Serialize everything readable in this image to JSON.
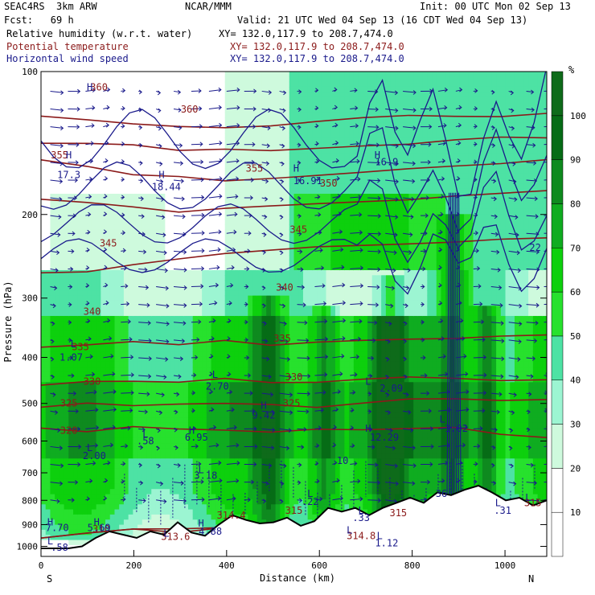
{
  "header": {
    "model": "SEAC4RS  3km ARW",
    "org": "NCAR/MMM",
    "init": "Init: 00 UTC Mon 02 Sep 13",
    "fcst": "Fcst:   69 h",
    "valid": "Valid: 21 UTC Wed 04 Sep 13 (16 CDT Wed 04 Sep 13)",
    "fields": [
      {
        "name": "Relative humidity (w.r.t. water)",
        "xy": "XY= 132.0,117.9 to 208.7,474.0",
        "color": "#000000"
      },
      {
        "name": "Potential temperature",
        "xy": "XY= 132.0,117.9 to 208.7,474.0",
        "color": "#8b1a1a"
      },
      {
        "name": "Horizontal wind speed",
        "xy": "XY= 132.0,117.9 to 208.7,474.0",
        "color": "#1a1a8b"
      }
    ]
  },
  "chart_data": {
    "type": "heatmap",
    "xlabel": "Distance (km)",
    "ylabel": "Pressure (hPa)",
    "x_ticks": [
      0,
      200,
      400,
      600,
      800,
      1000
    ],
    "y_ticks": [
      100,
      200,
      300,
      400,
      500,
      600,
      700,
      800,
      900,
      1000
    ],
    "xlim": [
      0,
      1090
    ],
    "ylim": [
      1050,
      100
    ],
    "y_scale": "log",
    "orientation_labels": {
      "left": "S",
      "right": "N"
    },
    "colorbar": {
      "unit": "%",
      "ticks": [
        10,
        20,
        30,
        40,
        50,
        60,
        70,
        80,
        90,
        100
      ],
      "colors": [
        "#ffffff",
        "#ffffff",
        "#cefadd",
        "#9cf5d2",
        "#4de2a4",
        "#27e12d",
        "#0dd00d",
        "#0fac20",
        "#0e8a1f",
        "#066c16",
        "#0e6b1a"
      ]
    },
    "theta_contours": [
      {
        "label": "360",
        "p": [
          125,
          127,
          128,
          131,
          130,
          129,
          128,
          126,
          125,
          124,
          123,
          122
        ]
      },
      {
        "label": "355",
        "p": [
          140,
          142,
          144,
          148,
          147,
          146,
          144,
          142,
          141,
          140,
          139,
          138
        ]
      },
      {
        "label": "350",
        "p": [
          155,
          160,
          165,
          168,
          168,
          166,
          165,
          163,
          162,
          160,
          158,
          155
        ]
      },
      {
        "label": "345",
        "p": [
          185,
          190,
          195,
          197,
          196,
          194,
          192,
          190,
          188,
          185,
          182,
          180
        ]
      },
      {
        "label": "340",
        "p": [
          268,
          265,
          258,
          250,
          242,
          236,
          232,
          230,
          228,
          226,
          225,
          222
        ]
      },
      {
        "label": "335",
        "p": [
          380,
          375,
          372,
          372,
          372,
          373,
          373,
          371,
          370,
          368,
          365,
          362
        ]
      },
      {
        "label": "330",
        "p": [
          455,
          450,
          448,
          448,
          448,
          448,
          447,
          446,
          445,
          444,
          443,
          442
        ]
      },
      {
        "label": "325",
        "p": [
          505,
          505,
          500,
          502,
          505,
          508,
          508,
          503,
          495,
          492,
          488,
          485
        ]
      },
      {
        "label": "320",
        "p": [
          570,
          570,
          565,
          565,
          565,
          568,
          570,
          572,
          570,
          568,
          575,
          585
        ]
      },
      {
        "label": "315",
        "p": [
          950,
          930,
          930,
          925,
          920,
          915,
          910,
          900,
          880,
          860,
          840,
          830
        ]
      },
      {
        "label": "310",
        "p": [
          950,
          940,
          930,
          920,
          920,
          920,
          910,
          905,
          900,
          890,
          880,
          870
        ]
      }
    ],
    "contour_labels": [
      {
        "text": "360",
        "x": 125,
        "p": 108,
        "color": "#8b1a1a"
      },
      {
        "text": "360",
        "x": 320,
        "p": 120,
        "color": "#8b1a1a"
      },
      {
        "text": "355",
        "x": 40,
        "p": 150,
        "color": "#8b1a1a"
      },
      {
        "text": "355",
        "x": 460,
        "p": 160,
        "color": "#8b1a1a"
      },
      {
        "text": "350",
        "x": 620,
        "p": 172,
        "color": "#8b1a1a"
      },
      {
        "text": "345",
        "x": 145,
        "p": 230,
        "color": "#8b1a1a"
      },
      {
        "text": "345",
        "x": 555,
        "p": 215,
        "color": "#8b1a1a"
      },
      {
        "text": "340",
        "x": 110,
        "p": 320,
        "color": "#8b1a1a"
      },
      {
        "text": "340",
        "x": 525,
        "p": 285,
        "color": "#8b1a1a"
      },
      {
        "text": "335",
        "x": 85,
        "p": 380,
        "color": "#8b1a1a"
      },
      {
        "text": "335",
        "x": 520,
        "p": 365,
        "color": "#8b1a1a"
      },
      {
        "text": "330",
        "x": 110,
        "p": 450,
        "color": "#8b1a1a"
      },
      {
        "text": "330",
        "x": 545,
        "p": 440,
        "color": "#8b1a1a"
      },
      {
        "text": "325",
        "x": 60,
        "p": 500,
        "color": "#8b1a1a"
      },
      {
        "text": "325",
        "x": 540,
        "p": 500,
        "color": "#8b1a1a"
      },
      {
        "text": "320",
        "x": 60,
        "p": 570,
        "color": "#8b1a1a"
      },
      {
        "text": "310",
        "x": 130,
        "p": 920,
        "color": "#8b1a1a"
      },
      {
        "text": "314.4",
        "x": 410,
        "p": 860,
        "color": "#8b1a1a"
      },
      {
        "text": "313.6",
        "x": 290,
        "p": 955,
        "color": "#8b1a1a"
      },
      {
        "text": "314.8",
        "x": 690,
        "p": 950,
        "color": "#8b1a1a"
      },
      {
        "text": "315",
        "x": 545,
        "p": 840,
        "color": "#8b1a1a"
      },
      {
        "text": "315",
        "x": 770,
        "p": 850,
        "color": "#8b1a1a"
      },
      {
        "text": "315",
        "x": 1060,
        "p": 810,
        "color": "#8b1a1a"
      },
      {
        "text": "16.91",
        "x": 575,
        "p": 170,
        "color": "#1a1a8b"
      },
      {
        "text": "16.9",
        "x": 745,
        "p": 155,
        "color": "#1a1a8b"
      },
      {
        "text": "17.3",
        "x": 60,
        "p": 165,
        "color": "#1a1a8b"
      },
      {
        "text": "18.44",
        "x": 270,
        "p": 175,
        "color": "#1a1a8b"
      },
      {
        "text": "1.07",
        "x": 65,
        "p": 400,
        "color": "#1a1a8b"
      },
      {
        "text": "2.70",
        "x": 380,
        "p": 460,
        "color": "#1a1a8b"
      },
      {
        "text": "2.09",
        "x": 755,
        "p": 465,
        "color": "#1a1a8b"
      },
      {
        "text": "9.42",
        "x": 480,
        "p": 530,
        "color": "#1a1a8b"
      },
      {
        "text": "1.02",
        "x": 895,
        "p": 565,
        "color": "#1a1a8b"
      },
      {
        "text": "12.29",
        "x": 740,
        "p": 590,
        "color": "#1a1a8b"
      },
      {
        "text": "6.95",
        "x": 335,
        "p": 590,
        "color": "#1a1a8b"
      },
      {
        "text": ".58",
        "x": 225,
        "p": 600,
        "color": "#1a1a8b"
      },
      {
        "text": "2.00",
        "x": 115,
        "p": 645,
        "color": "#1a1a8b"
      },
      {
        "text": "3.18",
        "x": 355,
        "p": 710,
        "color": "#1a1a8b"
      },
      {
        "text": ".22",
        "x": 580,
        "p": 805,
        "color": "#1a1a8b"
      },
      {
        "text": ".33",
        "x": 690,
        "p": 870,
        "color": "#1a1a8b"
      },
      {
        "text": "7.70",
        "x": 35,
        "p": 915,
        "color": "#1a1a8b"
      },
      {
        "text": "5.69",
        "x": 125,
        "p": 915,
        "color": "#1a1a8b"
      },
      {
        "text": "4.88",
        "x": 365,
        "p": 930,
        "color": "#1a1a8b"
      },
      {
        "text": "1.12",
        "x": 745,
        "p": 985,
        "color": "#1a1a8b"
      },
      {
        "text": ".58",
        "x": 40,
        "p": 1005,
        "color": "#1a1a8b"
      },
      {
        "text": ".31",
        "x": 995,
        "p": 840,
        "color": "#1a1a8b"
      },
      {
        "text": "36",
        "x": 863,
        "p": 775,
        "color": "#1a1a8b"
      },
      {
        "text": "22",
        "x": 1065,
        "p": 235,
        "color": "#1a1a8b"
      },
      {
        "text": "10",
        "x": 650,
        "p": 660,
        "color": "#1a1a8b"
      }
    ],
    "extrema_markers": [
      {
        "text": "H",
        "x": 105,
        "p": 108
      },
      {
        "text": "H",
        "x": 550,
        "p": 160
      },
      {
        "text": "H",
        "x": 725,
        "p": 150
      },
      {
        "text": "H",
        "x": 260,
        "p": 165
      },
      {
        "text": "H",
        "x": 60,
        "p": 150
      },
      {
        "text": "L",
        "x": 70,
        "p": 375
      },
      {
        "text": "L",
        "x": 375,
        "p": 435
      },
      {
        "text": "L",
        "x": 705,
        "p": 450
      },
      {
        "text": "H",
        "x": 480,
        "p": 505
      },
      {
        "text": "L",
        "x": 865,
        "p": 540
      },
      {
        "text": "H",
        "x": 705,
        "p": 565
      },
      {
        "text": "H",
        "x": 325,
        "p": 570
      },
      {
        "text": "L",
        "x": 225,
        "p": 580
      },
      {
        "text": "L",
        "x": 105,
        "p": 620
      },
      {
        "text": "L",
        "x": 345,
        "p": 690
      },
      {
        "text": "L",
        "x": 580,
        "p": 775
      },
      {
        "text": "L",
        "x": 690,
        "p": 840
      },
      {
        "text": "H",
        "x": 20,
        "p": 890
      },
      {
        "text": "H",
        "x": 120,
        "p": 890
      },
      {
        "text": "H",
        "x": 345,
        "p": 895
      },
      {
        "text": "L",
        "x": 730,
        "p": 950
      },
      {
        "text": "L",
        "x": 20,
        "p": 975
      },
      {
        "text": "L",
        "x": 985,
        "p": 810
      },
      {
        "text": "L",
        "x": 1050,
        "p": 790
      },
      {
        "text": "L",
        "x": 270,
        "p": 940
      },
      {
        "text": "L",
        "x": 665,
        "p": 925
      }
    ],
    "terrain_p": [
      1010,
      1010,
      1010,
      1000,
      960,
      930,
      945,
      960,
      930,
      945,
      890,
      935,
      950,
      900,
      860,
      880,
      895,
      890,
      870,
      905,
      885,
      830,
      845,
      830,
      860,
      830,
      810,
      790,
      810,
      770,
      780,
      760,
      745,
      770,
      800,
      790,
      820,
      800
    ],
    "rh_columns": [
      {
        "x": 490,
        "top": 300
      },
      {
        "x": 610,
        "top": 310
      },
      {
        "x": 750,
        "top": 270
      },
      {
        "x": 890,
        "top": 200
      },
      {
        "x": 960,
        "top": 310
      }
    ]
  }
}
